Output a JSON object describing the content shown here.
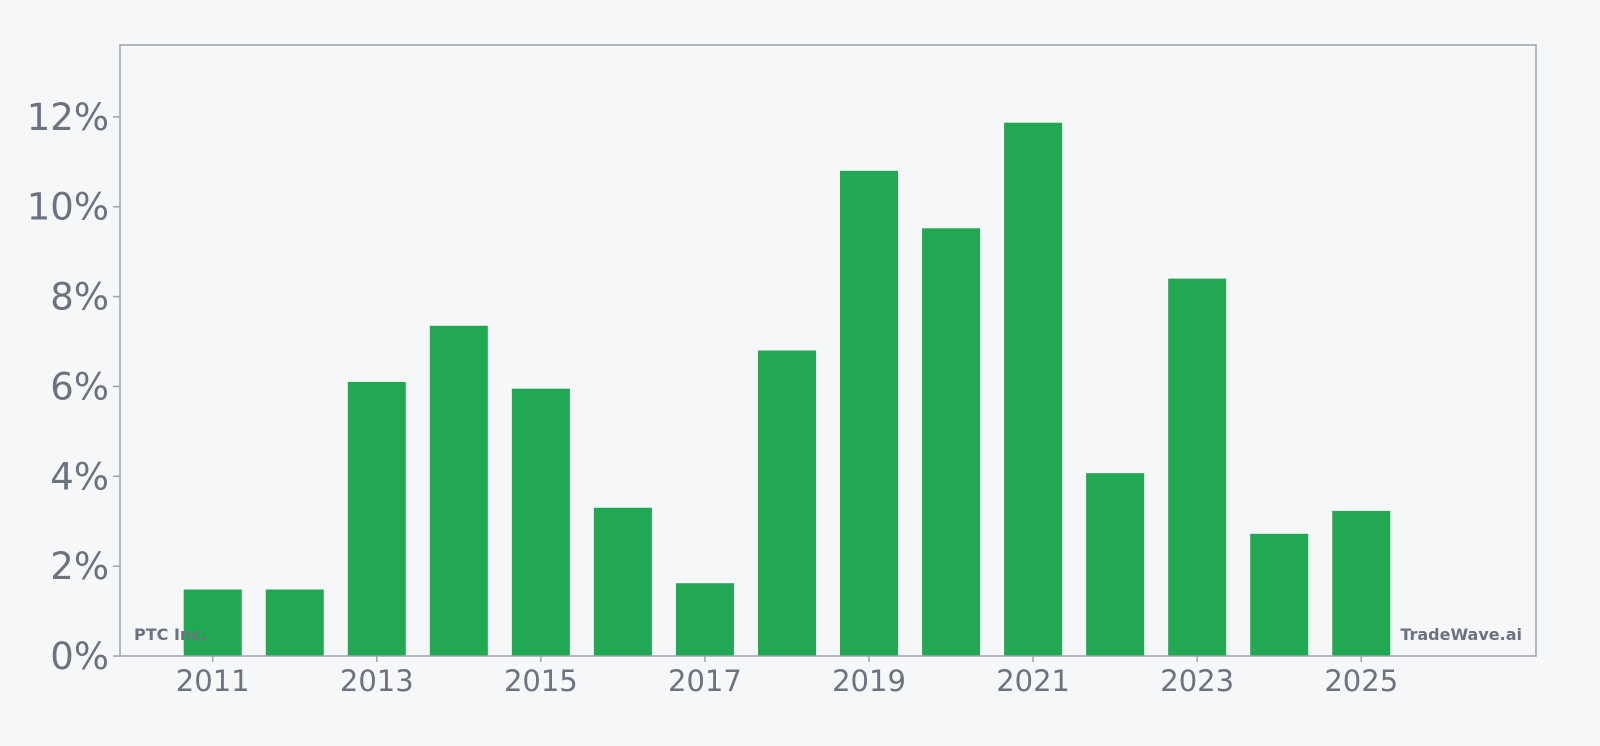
{
  "chart_data": {
    "type": "bar",
    "x": [
      2011,
      2012,
      2013,
      2014,
      2015,
      2016,
      2017,
      2018,
      2019,
      2020,
      2021,
      2022,
      2023,
      2024,
      2025
    ],
    "values": [
      1.48,
      1.48,
      6.1,
      7.35,
      5.95,
      3.3,
      1.62,
      6.8,
      10.8,
      9.52,
      11.87,
      4.07,
      8.4,
      2.72,
      3.23
    ],
    "value_unit": "%",
    "xlim": [
      2009.87,
      2027.13
    ],
    "ylim": [
      0,
      13.6
    ],
    "yticks": [
      0,
      2,
      4,
      6,
      8,
      10,
      12
    ],
    "ytick_labels": [
      "0%",
      "2%",
      "4%",
      "6%",
      "8%",
      "10%",
      "12%"
    ],
    "xticks": [
      2011,
      2013,
      2015,
      2017,
      2019,
      2021,
      2023,
      2025
    ],
    "xtick_labels": [
      "2011",
      "2013",
      "2015",
      "2017",
      "2019",
      "2021",
      "2023",
      "2025"
    ],
    "title": "",
    "xlabel": "",
    "ylabel": "",
    "grid": false,
    "legend": "none",
    "colors": {
      "bar": "#22a752",
      "background": "#f5f7f9",
      "frame": "#9ca3af",
      "text": "#6b7280"
    }
  },
  "watermarks": {
    "company": "PTC Inc.",
    "brand": "TradeWave.ai"
  }
}
